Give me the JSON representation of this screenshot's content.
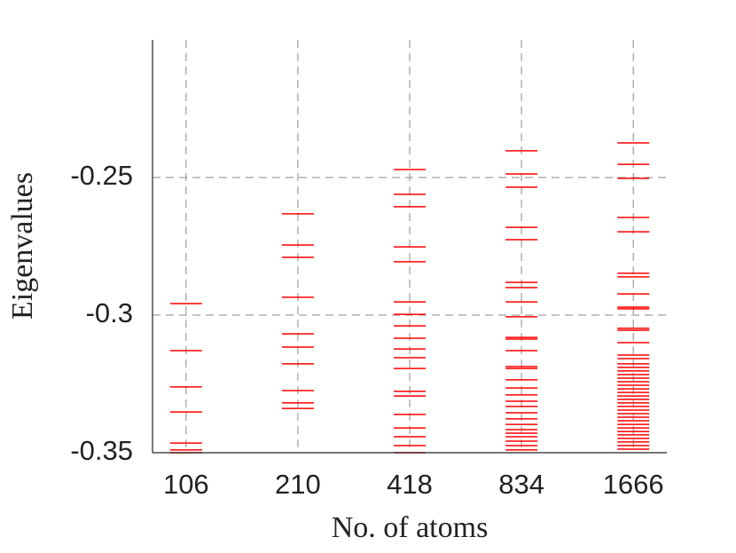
{
  "chart_data": {
    "type": "strip",
    "x_label": "No. of atoms",
    "y_label": "Eigenvalues",
    "categories": [
      "106",
      "210",
      "418",
      "834",
      "1666"
    ],
    "color": "#ff0000",
    "grid": true,
    "ylim": [
      -0.35,
      -0.2
    ],
    "yticks": [
      -0.35,
      -0.3,
      -0.25
    ],
    "values": [
      [
        -0.2958,
        -0.3129,
        -0.3261,
        -0.3352,
        -0.3465,
        -0.349,
        -0.35
      ],
      [
        -0.2632,
        -0.2745,
        -0.279,
        -0.2935,
        -0.3068,
        -0.3116,
        -0.3177,
        -0.3274,
        -0.3319,
        -0.3339
      ],
      [
        -0.2471,
        -0.2561,
        -0.2606,
        -0.2752,
        -0.2806,
        -0.2952,
        -0.2997,
        -0.3039,
        -0.3084,
        -0.3123,
        -0.3155,
        -0.3194,
        -0.3277,
        -0.3294,
        -0.3361,
        -0.341,
        -0.3442,
        -0.3474,
        -0.35
      ],
      [
        -0.2403,
        -0.2487,
        -0.2535,
        -0.2681,
        -0.2726,
        -0.2881,
        -0.29,
        -0.2952,
        -0.3006,
        -0.3081,
        -0.3087,
        -0.3129,
        -0.3187,
        -0.3194,
        -0.3235,
        -0.3265,
        -0.329,
        -0.3313,
        -0.3332,
        -0.3355,
        -0.3377,
        -0.3397,
        -0.3416,
        -0.3429,
        -0.3442,
        -0.3458,
        -0.3474,
        -0.349
      ],
      [
        -0.2374,
        -0.2452,
        -0.2503,
        -0.2645,
        -0.2697,
        -0.2848,
        -0.2861,
        -0.2923,
        -0.2971,
        -0.2977,
        -0.3048,
        -0.3055,
        -0.31,
        -0.3145,
        -0.3158,
        -0.3177,
        -0.319,
        -0.3203,
        -0.3216,
        -0.3229,
        -0.3242,
        -0.3255,
        -0.3268,
        -0.3281,
        -0.3294,
        -0.3306,
        -0.3319,
        -0.3332,
        -0.3345,
        -0.3358,
        -0.3371,
        -0.3384,
        -0.3397,
        -0.341,
        -0.3423,
        -0.3435,
        -0.3448,
        -0.3461,
        -0.3474,
        -0.3487
      ]
    ]
  }
}
